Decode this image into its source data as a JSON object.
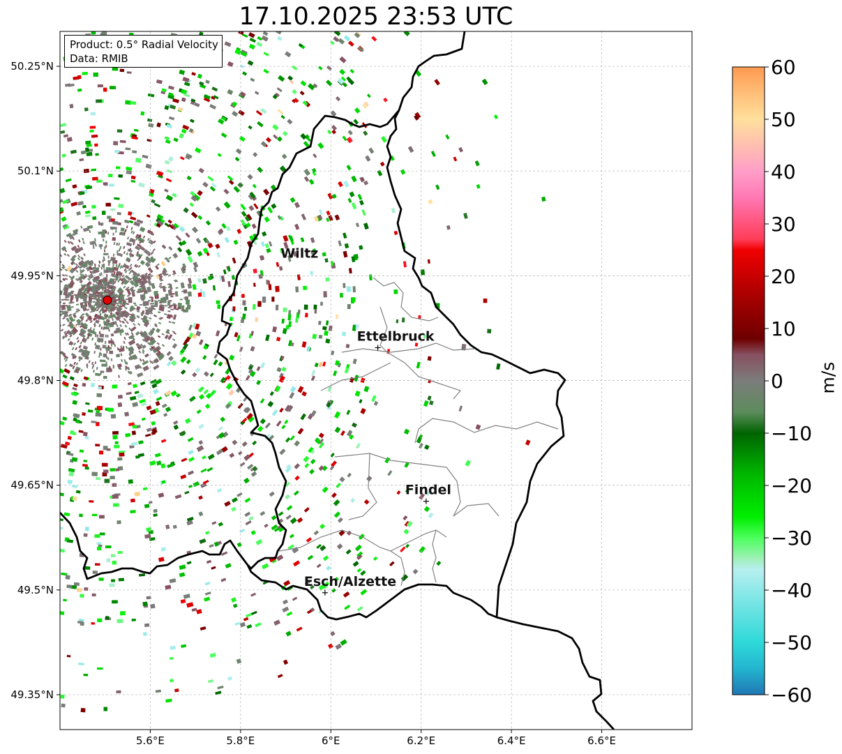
{
  "title": "17.10.2025 23:53 UTC",
  "info": {
    "product": "Product: 0.5° Radial Velocity",
    "data": "Data: RMIB"
  },
  "map": {
    "lon_range": [
      5.4,
      6.8
    ],
    "lat_range": [
      49.3,
      50.3
    ],
    "lat_ticks": [
      {
        "value": 49.35,
        "label": "49.35°N"
      },
      {
        "value": 49.5,
        "label": "49.5°N"
      },
      {
        "value": 49.65,
        "label": "49.65°N"
      },
      {
        "value": 49.8,
        "label": "49.8°N"
      },
      {
        "value": 49.95,
        "label": "49.95°N"
      },
      {
        "value": 50.1,
        "label": "50.1°N"
      },
      {
        "value": 50.25,
        "label": "50.25°N"
      }
    ],
    "lon_ticks": [
      {
        "value": 5.6,
        "label": "5.6°E"
      },
      {
        "value": 5.8,
        "label": "5.8°E"
      },
      {
        "value": 6.0,
        "label": "6°E"
      },
      {
        "value": 6.2,
        "label": "6.2°E"
      },
      {
        "value": 6.4,
        "label": "6.4°E"
      },
      {
        "value": 6.6,
        "label": "6.6°E"
      }
    ],
    "radar_site": {
      "lon": 5.505,
      "lat": 49.915
    },
    "places": [
      {
        "name": "Wiltz",
        "lon": 5.935,
        "lat": 49.966,
        "marker": false
      },
      {
        "name": "Ettelbruck",
        "lon": 6.104,
        "lat": 49.847,
        "marker": true
      },
      {
        "name": "Findel",
        "lon": 6.211,
        "lat": 49.627,
        "marker": true
      },
      {
        "name": "Esch/Alzette",
        "lon": 5.987,
        "lat": 49.496,
        "marker": true
      }
    ]
  },
  "colorbar": {
    "label": "m/s",
    "min": -60,
    "max": 60,
    "ticks": [
      {
        "value": 60,
        "label": "60"
      },
      {
        "value": 50,
        "label": "50"
      },
      {
        "value": 40,
        "label": "40"
      },
      {
        "value": 30,
        "label": "30"
      },
      {
        "value": 20,
        "label": "20"
      },
      {
        "value": 10,
        "label": "10"
      },
      {
        "value": 0,
        "label": "0"
      },
      {
        "value": -10,
        "label": "−10"
      },
      {
        "value": -20,
        "label": "−20"
      },
      {
        "value": -30,
        "label": "−30"
      },
      {
        "value": -40,
        "label": "−40"
      },
      {
        "value": -50,
        "label": "−50"
      },
      {
        "value": -60,
        "label": "−60"
      }
    ],
    "stops": [
      {
        "v": -60,
        "c": "#1f77b4"
      },
      {
        "v": -55,
        "c": "#23b5cf"
      },
      {
        "v": -50,
        "c": "#2ed9d9"
      },
      {
        "v": -45,
        "c": "#5fe0e0"
      },
      {
        "v": -40,
        "c": "#8fe9e9"
      },
      {
        "v": -36,
        "c": "#b8efef"
      },
      {
        "v": -34,
        "c": "#9ff0b8"
      },
      {
        "v": -30,
        "c": "#4cff5c"
      },
      {
        "v": -26,
        "c": "#00ee00"
      },
      {
        "v": -18,
        "c": "#00b800"
      },
      {
        "v": -10,
        "c": "#006400"
      },
      {
        "v": -6,
        "c": "#5c8c5c"
      },
      {
        "v": 0,
        "c": "#7c7c7c"
      },
      {
        "v": 5,
        "c": "#875060"
      },
      {
        "v": 8,
        "c": "#6e0000"
      },
      {
        "v": 15,
        "c": "#a00000"
      },
      {
        "v": 25,
        "c": "#f00000"
      },
      {
        "v": 27,
        "c": "#ff3c58"
      },
      {
        "v": 35,
        "c": "#ff78b4"
      },
      {
        "v": 40,
        "c": "#ff9ec8"
      },
      {
        "v": 45,
        "c": "#ffbfb0"
      },
      {
        "v": 50,
        "c": "#ffe09c"
      },
      {
        "v": 55,
        "c": "#ffbe78"
      },
      {
        "v": 60,
        "c": "#ff9a50"
      }
    ]
  },
  "colors": {
    "border": "#000000",
    "district_lines": "#808080",
    "grid": "#b0b0b0",
    "radar_marker": "#e00000"
  }
}
